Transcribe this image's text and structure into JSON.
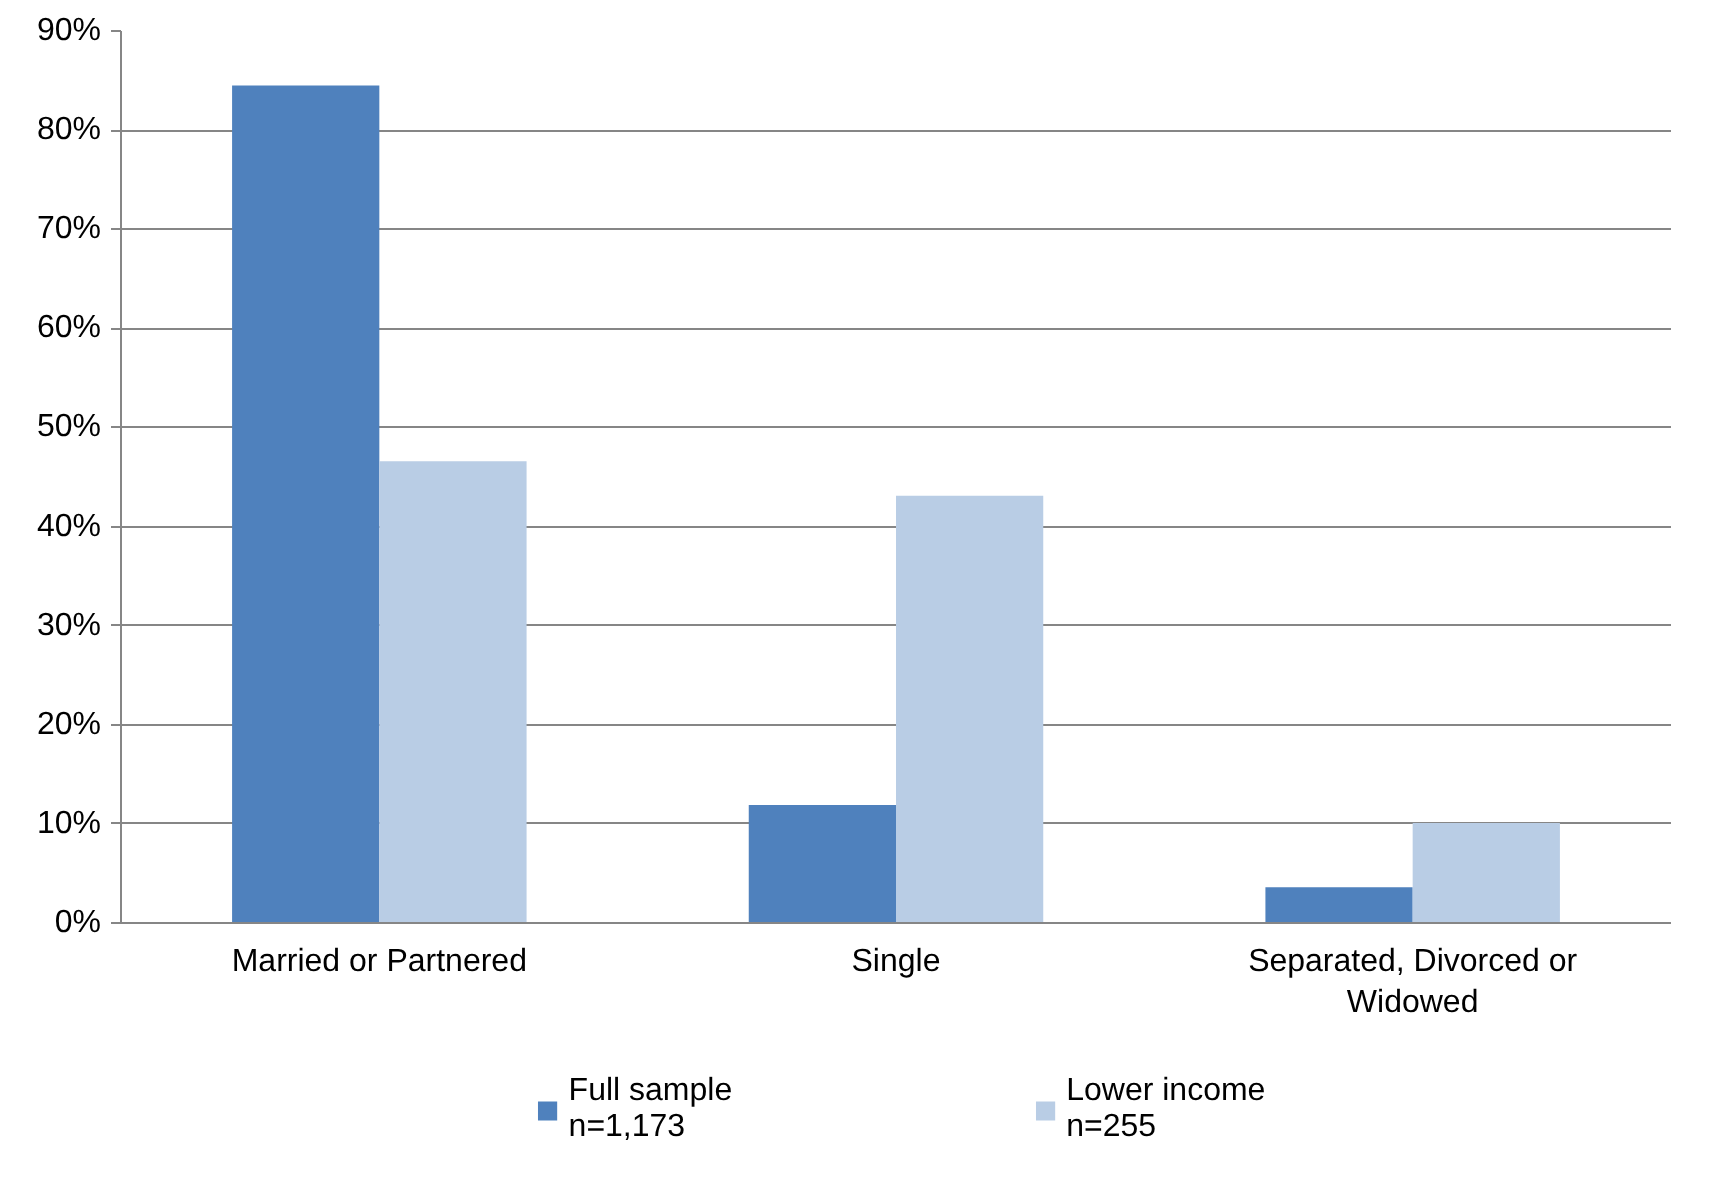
{
  "chart_data": {
    "type": "bar",
    "categories": [
      "Married or Partnered",
      "Single",
      "Separated, Divorced or Widowed"
    ],
    "series": [
      {
        "name": "Full sample\nn=1,173",
        "color": "#4f81bd",
        "values": [
          84.5,
          11.9,
          3.6
        ]
      },
      {
        "name": "Lower income\nn=255",
        "color": "#b9cde5",
        "values": [
          46.6,
          43.1,
          10.1
        ]
      }
    ],
    "ylim": [
      0,
      90
    ],
    "yticks": [
      {
        "value": 0,
        "label": "0%"
      },
      {
        "value": 10,
        "label": "10%"
      },
      {
        "value": 20,
        "label": "20%"
      },
      {
        "value": 30,
        "label": "30%"
      },
      {
        "value": 40,
        "label": "40%"
      },
      {
        "value": 50,
        "label": "50%"
      },
      {
        "value": 60,
        "label": "60%"
      },
      {
        "value": 70,
        "label": "70%"
      },
      {
        "value": 80,
        "label": "80%"
      },
      {
        "value": 90,
        "label": "90%"
      }
    ],
    "grid": "y",
    "legend": "bottom"
  }
}
